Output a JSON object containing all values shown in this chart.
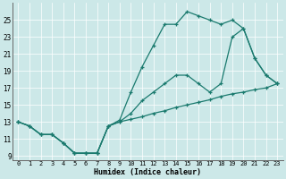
{
  "xlabel": "Humidex (Indice chaleur)",
  "bg_color": "#cce8e8",
  "line_color": "#1a7a6e",
  "xlim": [
    -0.5,
    23.5
  ],
  "ylim": [
    8.5,
    27
  ],
  "xticks": [
    0,
    1,
    2,
    3,
    4,
    5,
    6,
    7,
    8,
    9,
    10,
    11,
    12,
    13,
    14,
    15,
    16,
    17,
    18,
    19,
    20,
    21,
    22,
    23
  ],
  "yticks": [
    9,
    11,
    13,
    15,
    17,
    19,
    21,
    23,
    25
  ],
  "line1_x": [
    0,
    1,
    2,
    3,
    4,
    5,
    6,
    7,
    8,
    9,
    10,
    11,
    12,
    13,
    14,
    15,
    16,
    17,
    18,
    19,
    20,
    21,
    22,
    23
  ],
  "line1_y": [
    13,
    12.5,
    11.5,
    11.5,
    10.5,
    9.3,
    9.3,
    9.3,
    12.5,
    13.2,
    16.5,
    19.5,
    22.0,
    24.5,
    24.5,
    26.0,
    25.5,
    25.0,
    24.5,
    25.0,
    24.0,
    20.5,
    18.5,
    17.5
  ],
  "line2_x": [
    0,
    1,
    2,
    3,
    4,
    5,
    6,
    7,
    8,
    9,
    10,
    11,
    12,
    13,
    14,
    15,
    16,
    17,
    18,
    19,
    20,
    21,
    22,
    23
  ],
  "line2_y": [
    13,
    12.5,
    11.5,
    11.5,
    10.5,
    9.3,
    9.3,
    9.3,
    12.5,
    13.0,
    14.0,
    15.5,
    16.5,
    17.5,
    18.5,
    18.5,
    17.5,
    16.5,
    17.5,
    23.0,
    24.0,
    20.5,
    18.5,
    17.5
  ],
  "line3_x": [
    0,
    1,
    2,
    3,
    4,
    5,
    6,
    7,
    8,
    9,
    10,
    11,
    12,
    13,
    14,
    15,
    16,
    17,
    18,
    19,
    20,
    21,
    22,
    23
  ],
  "line3_y": [
    13,
    12.5,
    11.5,
    11.5,
    10.5,
    9.3,
    9.3,
    9.3,
    12.5,
    13.0,
    13.3,
    13.6,
    14.0,
    14.3,
    14.7,
    15.0,
    15.3,
    15.6,
    16.0,
    16.3,
    16.5,
    16.8,
    17.0,
    17.5
  ]
}
